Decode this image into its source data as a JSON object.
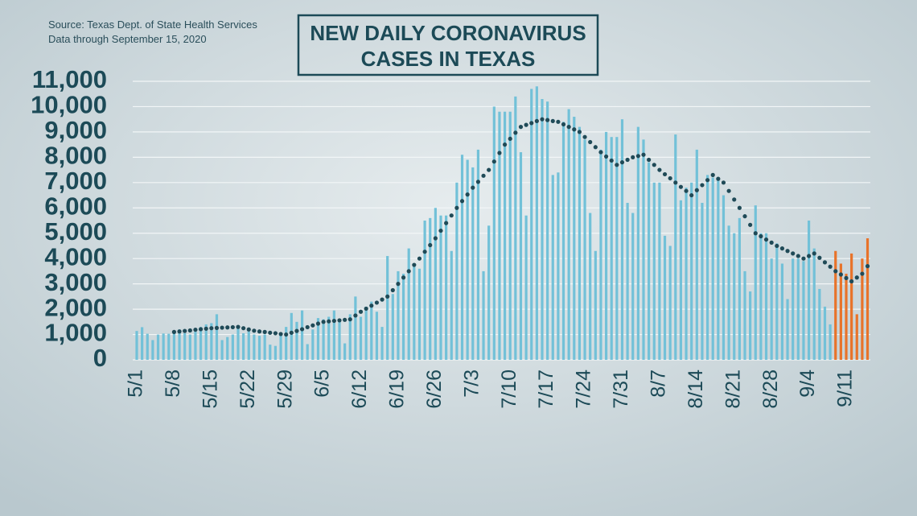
{
  "chart_data": {
    "type": "bar",
    "title": [
      "NEW DAILY CORONAVIRUS",
      "CASES IN TEXAS"
    ],
    "subtitle": [
      "Source: Texas Dept. of State Health Services",
      "Data through September 15, 2020"
    ],
    "categories": [
      "5/1",
      null,
      null,
      null,
      null,
      null,
      null,
      "5/8",
      null,
      null,
      null,
      null,
      null,
      null,
      "5/15",
      null,
      null,
      null,
      null,
      null,
      null,
      "5/22",
      null,
      null,
      null,
      null,
      null,
      null,
      "5/29",
      null,
      null,
      null,
      null,
      null,
      null,
      "6/5",
      null,
      null,
      null,
      null,
      null,
      null,
      "6/12",
      null,
      null,
      null,
      null,
      null,
      null,
      "6/19",
      null,
      null,
      null,
      null,
      null,
      null,
      "6/26",
      null,
      null,
      null,
      null,
      null,
      null,
      "7/3",
      null,
      null,
      null,
      null,
      null,
      null,
      "7/10",
      null,
      null,
      null,
      null,
      null,
      null,
      "7/17",
      null,
      null,
      null,
      null,
      null,
      null,
      "7/24",
      null,
      null,
      null,
      null,
      null,
      null,
      "7/31",
      null,
      null,
      null,
      null,
      null,
      null,
      "8/7",
      null,
      null,
      null,
      null,
      null,
      null,
      "8/14",
      null,
      null,
      null,
      null,
      null,
      null,
      "8/21",
      null,
      null,
      null,
      null,
      null,
      null,
      "8/28",
      null,
      null,
      null,
      null,
      null,
      null,
      "9/4",
      null,
      null,
      null,
      null,
      null,
      null,
      "9/11",
      null,
      null,
      null,
      null
    ],
    "series": [
      {
        "type": "bar",
        "color": "#72c1d8",
        "values": [
          1140,
          1290,
          1030,
          780,
          1000,
          1040,
          1030,
          1100,
          1200,
          1050,
          1000,
          1200,
          1300,
          1400,
          1450,
          1800,
          780,
          900,
          1000,
          1300,
          1050,
          1120,
          1000,
          950,
          1000,
          600,
          550,
          1000,
          1300,
          1850,
          1500,
          1950,
          620,
          1200,
          1650,
          1600,
          1700,
          1950,
          1550,
          650,
          1800,
          2500,
          1700,
          2100,
          2300,
          1900,
          1300,
          4100,
          2600,
          3500,
          3400,
          4400,
          3800,
          3600,
          5500,
          5600,
          6000,
          5700,
          5700,
          4300,
          7000,
          8100,
          7900,
          7600,
          8300,
          3500,
          5300,
          10000,
          9800,
          9800,
          9800,
          10400,
          8200,
          5700,
          10700,
          10800,
          10300,
          10200,
          7300,
          7400,
          9400,
          9900,
          9600,
          9200,
          8700,
          5800,
          4300,
          8300,
          9000,
          8800,
          8800,
          9500,
          6200,
          5800,
          9200,
          8700,
          7800,
          7000,
          7000,
          4900,
          4500,
          8900,
          6300,
          6800,
          7000,
          8300,
          6200,
          7300,
          7200,
          7100,
          6500,
          5300,
          5000,
          5600,
          3500,
          2700,
          6100,
          5000,
          5000,
          4000,
          4600,
          3800,
          2400,
          4000,
          4000,
          3900,
          5500,
          4400,
          2800,
          2100,
          1400,
          null,
          null,
          null,
          null,
          null,
          null,
          null
        ]
      },
      {
        "type": "bar",
        "color": "#e8732a",
        "values": [
          null,
          null,
          null,
          null,
          null,
          null,
          null,
          null,
          null,
          null,
          null,
          null,
          null,
          null,
          null,
          null,
          null,
          null,
          null,
          null,
          null,
          null,
          null,
          null,
          null,
          null,
          null,
          null,
          null,
          null,
          null,
          null,
          null,
          null,
          null,
          null,
          null,
          null,
          null,
          null,
          null,
          null,
          null,
          null,
          null,
          null,
          null,
          null,
          null,
          null,
          null,
          null,
          null,
          null,
          null,
          null,
          null,
          null,
          null,
          null,
          null,
          null,
          null,
          null,
          null,
          null,
          null,
          null,
          null,
          null,
          null,
          null,
          null,
          null,
          null,
          null,
          null,
          null,
          null,
          null,
          null,
          null,
          null,
          null,
          null,
          null,
          null,
          null,
          null,
          null,
          null,
          null,
          null,
          null,
          null,
          null,
          null,
          null,
          null,
          null,
          null,
          null,
          null,
          null,
          null,
          null,
          null,
          null,
          null,
          null,
          null,
          null,
          null,
          null,
          null,
          null,
          null,
          null,
          null,
          null,
          null,
          null,
          null,
          null,
          null,
          null,
          null,
          null,
          null,
          null,
          null,
          4300,
          3800,
          3400,
          4200,
          1800,
          4000,
          4800
        ]
      },
      {
        "type": "line",
        "style": "dotted",
        "color": "#1f4a57",
        "values": [
          null,
          null,
          null,
          null,
          null,
          null,
          null,
          1100,
          1120,
          1140,
          1160,
          1190,
          1210,
          1230,
          1250,
          1260,
          1270,
          1280,
          1290,
          1300,
          1250,
          1200,
          1150,
          1120,
          1100,
          1070,
          1050,
          1020,
          1000,
          1070,
          1140,
          1210,
          1290,
          1360,
          1430,
          1500,
          1520,
          1540,
          1560,
          1580,
          1600,
          1750,
          1900,
          2020,
          2140,
          2260,
          2380,
          2500,
          2750,
          3000,
          3250,
          3500,
          3750,
          4000,
          4270,
          4530,
          4800,
          5100,
          5400,
          5700,
          6000,
          6270,
          6530,
          6800,
          7030,
          7270,
          7500,
          7830,
          8170,
          8500,
          8730,
          8970,
          9200,
          9280,
          9350,
          9430,
          9500,
          9470,
          9430,
          9400,
          9300,
          9200,
          9100,
          9000,
          8800,
          8600,
          8400,
          8200,
          8030,
          7870,
          7700,
          7800,
          7900,
          8000,
          8050,
          8100,
          7900,
          7700,
          7500,
          7330,
          7170,
          7000,
          6830,
          6670,
          6500,
          6700,
          6900,
          7100,
          7300,
          7150,
          7000,
          6670,
          6330,
          6000,
          5670,
          5330,
          5000,
          4880,
          4750,
          4630,
          4500,
          4400,
          4300,
          4200,
          4100,
          4000,
          4100,
          4200,
          4030,
          3850,
          3680,
          3500,
          3370,
          3230,
          3100,
          3250,
          3400,
          3700
        ]
      }
    ],
    "ylim": [
      0,
      11000
    ],
    "yticks": [
      0,
      {
        "value": 1000,
        "label": "1,000"
      },
      {
        "value": 2000,
        "label": "2,000"
      },
      {
        "value": 3000,
        "label": "3,000"
      },
      {
        "value": 4000,
        "label": "4,000"
      },
      {
        "value": 5000,
        "label": "5,000"
      },
      {
        "value": 6000,
        "label": "6,000"
      },
      {
        "value": 7000,
        "label": "7,000"
      },
      {
        "value": 8000,
        "label": "8,000"
      },
      {
        "value": 9000,
        "label": "9,000"
      },
      {
        "value": 10000,
        "label": "10,000"
      },
      {
        "value": 11000,
        "label": "11,000"
      }
    ],
    "grid": true
  }
}
